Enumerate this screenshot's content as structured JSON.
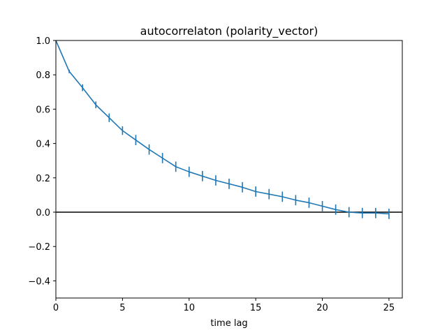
{
  "chart_data": {
    "type": "line",
    "title": "autocorrelaton (polarity_vector)",
    "xlabel": "time lag",
    "ylabel": "",
    "xlim": [
      0,
      26
    ],
    "ylim": [
      -0.5,
      1.0
    ],
    "xticks": [
      0,
      5,
      10,
      15,
      20,
      25
    ],
    "yticks": [
      -0.4,
      -0.2,
      0.0,
      0.2,
      0.4,
      0.6,
      0.8,
      1.0
    ],
    "xtick_labels": [
      "0",
      "5",
      "10",
      "15",
      "20",
      "25"
    ],
    "ytick_labels": [
      "−0.4",
      "−0.2",
      "0.0",
      "0.2",
      "0.4",
      "0.6",
      "0.8",
      "1.0"
    ],
    "reference_line_y": 0.0,
    "grid": false,
    "series": [
      {
        "color": "#1f77b4",
        "x": [
          0,
          1,
          2,
          3,
          4,
          5,
          6,
          7,
          8,
          9,
          10,
          11,
          12,
          13,
          14,
          15,
          16,
          17,
          18,
          19,
          20,
          21,
          22,
          23,
          24,
          25
        ],
        "y": [
          1.0,
          0.82,
          0.725,
          0.625,
          0.55,
          0.475,
          0.42,
          0.365,
          0.315,
          0.265,
          0.235,
          0.21,
          0.185,
          0.165,
          0.145,
          0.12,
          0.105,
          0.09,
          0.07,
          0.055,
          0.035,
          0.015,
          0.0,
          -0.005,
          -0.005,
          -0.01
        ],
        "err": [
          0.0,
          0.01,
          0.02,
          0.02,
          0.025,
          0.025,
          0.03,
          0.03,
          0.03,
          0.03,
          0.03,
          0.03,
          0.03,
          0.03,
          0.03,
          0.03,
          0.03,
          0.03,
          0.03,
          0.03,
          0.03,
          0.03,
          0.03,
          0.03,
          0.03,
          0.03
        ]
      }
    ]
  }
}
